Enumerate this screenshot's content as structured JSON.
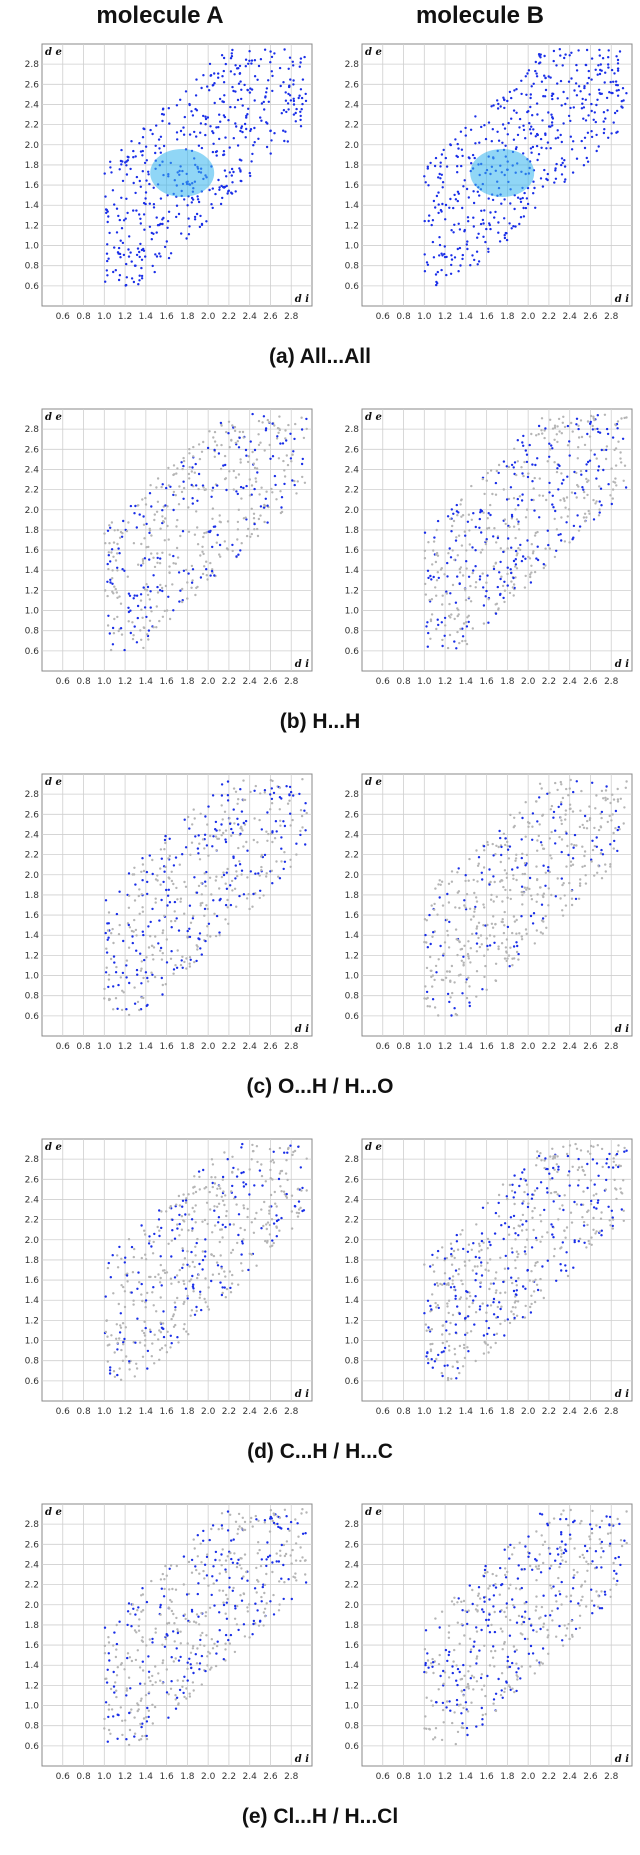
{
  "headers": {
    "left": "molecule A",
    "right": "molecule B"
  },
  "axes": {
    "xlabel": "d i",
    "ylabel": "d e",
    "xticks": [
      "0.6",
      "0.8",
      "1.0",
      "1.2",
      "1.4",
      "1.6",
      "1.8",
      "2.0",
      "2.2",
      "2.4",
      "2.6",
      "2.8"
    ],
    "yticks": [
      "2.8",
      "2.6",
      "2.4",
      "2.2",
      "2.0",
      "1.8",
      "1.6",
      "1.4",
      "1.2",
      "1.0",
      "0.8",
      "0.6"
    ]
  },
  "colors": {
    "highlight": "#1a2fe8",
    "core": "#35b4ee",
    "background": "#b5b5b5",
    "grid": "#cfcfcf"
  },
  "captions": [
    "(a)  All...All",
    "(b)  H...H",
    "(c)  O...H / H...O",
    "(d)  C...H / H...C",
    "(e)  Cl...H / H...Cl"
  ],
  "chart_data": [
    {
      "type": "scatter",
      "title": "(a)  All...All",
      "molecule": "molecule A",
      "xlabel": "d i",
      "ylabel": "d e",
      "xlim": [
        0.4,
        3.0
      ],
      "ylim": [
        0.4,
        3.0
      ],
      "grid": true,
      "fingerprint": "full",
      "contact": "All...All"
    },
    {
      "type": "scatter",
      "title": "(a)  All...All",
      "molecule": "molecule B",
      "xlabel": "d i",
      "ylabel": "d e",
      "xlim": [
        0.4,
        3.0
      ],
      "ylim": [
        0.4,
        3.0
      ],
      "grid": true,
      "fingerprint": "full",
      "contact": "All...All"
    },
    {
      "type": "scatter",
      "title": "(b)  H...H",
      "molecule": "molecule A",
      "xlabel": "d i",
      "ylabel": "d e",
      "xlim": [
        0.4,
        3.0
      ],
      "ylim": [
        0.4,
        3.0
      ],
      "grid": true,
      "fingerprint": "decomposed",
      "contact": "H...H"
    },
    {
      "type": "scatter",
      "title": "(b)  H...H",
      "molecule": "molecule B",
      "xlabel": "d i",
      "ylabel": "d e",
      "xlim": [
        0.4,
        3.0
      ],
      "ylim": [
        0.4,
        3.0
      ],
      "grid": true,
      "fingerprint": "decomposed",
      "contact": "H...H"
    },
    {
      "type": "scatter",
      "title": "(c)  O...H / H...O",
      "molecule": "molecule A",
      "xlabel": "d i",
      "ylabel": "d e",
      "xlim": [
        0.4,
        3.0
      ],
      "ylim": [
        0.4,
        3.0
      ],
      "grid": true,
      "fingerprint": "decomposed",
      "contact": "O...H / H...O"
    },
    {
      "type": "scatter",
      "title": "(c)  O...H / H...O",
      "molecule": "molecule B",
      "xlabel": "d i",
      "ylabel": "d e",
      "xlim": [
        0.4,
        3.0
      ],
      "ylim": [
        0.4,
        3.0
      ],
      "grid": true,
      "fingerprint": "decomposed",
      "contact": "O...H / H...O"
    },
    {
      "type": "scatter",
      "title": "(d)  C...H / H...C",
      "molecule": "molecule A",
      "xlabel": "d i",
      "ylabel": "d e",
      "xlim": [
        0.4,
        3.0
      ],
      "ylim": [
        0.4,
        3.0
      ],
      "grid": true,
      "fingerprint": "decomposed",
      "contact": "C...H / H...C"
    },
    {
      "type": "scatter",
      "title": "(d)  C...H / H...C",
      "molecule": "molecule B",
      "xlabel": "d i",
      "ylabel": "d e",
      "xlim": [
        0.4,
        3.0
      ],
      "ylim": [
        0.4,
        3.0
      ],
      "grid": true,
      "fingerprint": "decomposed",
      "contact": "C...H / H...C"
    },
    {
      "type": "scatter",
      "title": "(e)  Cl...H / H...Cl",
      "molecule": "molecule A",
      "xlabel": "d i",
      "ylabel": "d e",
      "xlim": [
        0.4,
        3.0
      ],
      "ylim": [
        0.4,
        3.0
      ],
      "grid": true,
      "fingerprint": "decomposed",
      "contact": "Cl...H / H...Cl"
    },
    {
      "type": "scatter",
      "title": "(e)  Cl...H / H...Cl",
      "molecule": "molecule B",
      "xlabel": "d i",
      "ylabel": "d e",
      "xlim": [
        0.4,
        3.0
      ],
      "ylim": [
        0.4,
        3.0
      ],
      "grid": true,
      "fingerprint": "decomposed",
      "contact": "Cl...H / H...Cl"
    }
  ]
}
